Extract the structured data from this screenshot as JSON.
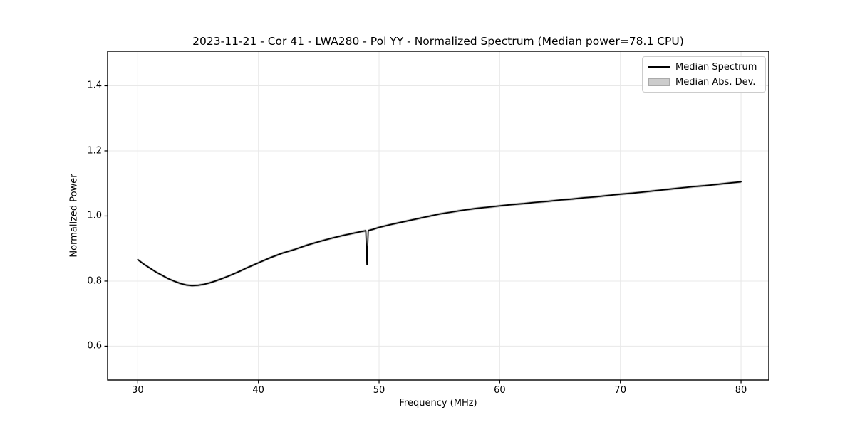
{
  "figure": {
    "background": "#ffffff"
  },
  "chart_data": {
    "type": "line",
    "title": "2023-11-21 - Cor 41 - LWA280 - Pol YY - Normalized Spectrum (Median power=78.1 CPU)",
    "xlabel": "Frequency (MHz)",
    "ylabel": "Normalized Power",
    "xlim": [
      27.5,
      82.3
    ],
    "ylim": [
      0.496,
      1.506
    ],
    "xticks": [
      30,
      40,
      50,
      60,
      70,
      80
    ],
    "yticks": [
      0.6,
      0.8,
      1.0,
      1.2,
      1.4
    ],
    "grid": true,
    "grid_color": "#e8e8e8",
    "frame_color": "#000000",
    "legend": {
      "position": "upper right",
      "entries": [
        {
          "label": "Median Spectrum",
          "type": "line",
          "color": "#000000"
        },
        {
          "label": "Median Abs. Dev.",
          "type": "patch",
          "color": "#cccccc"
        }
      ]
    },
    "series": [
      {
        "name": "Median Spectrum",
        "color": "#000000",
        "line_width": 1.8,
        "x": [
          30,
          30.5,
          31,
          31.5,
          32,
          32.5,
          33,
          33.5,
          34,
          34.5,
          35,
          35.5,
          36,
          36.5,
          37,
          37.5,
          38,
          38.5,
          39,
          39.5,
          40,
          41,
          42,
          43,
          44,
          45,
          46,
          47,
          48,
          48.5,
          48.8,
          48.9,
          49.0,
          49.1,
          49.2,
          49.5,
          50,
          51,
          52,
          53,
          54,
          55,
          56,
          57,
          58,
          59,
          60,
          61,
          62,
          63,
          64,
          65,
          66,
          67,
          68,
          69,
          70,
          71,
          72,
          73,
          74,
          75,
          76,
          77,
          78,
          79,
          80
        ],
        "y": [
          0.866,
          0.852,
          0.84,
          0.828,
          0.818,
          0.808,
          0.8,
          0.793,
          0.788,
          0.786,
          0.787,
          0.79,
          0.795,
          0.801,
          0.808,
          0.815,
          0.823,
          0.831,
          0.84,
          0.848,
          0.856,
          0.872,
          0.886,
          0.897,
          0.91,
          0.921,
          0.931,
          0.94,
          0.948,
          0.952,
          0.954,
          0.955,
          0.85,
          0.955,
          0.956,
          0.959,
          0.965,
          0.974,
          0.982,
          0.99,
          0.998,
          1.006,
          1.012,
          1.018,
          1.023,
          1.027,
          1.031,
          1.035,
          1.038,
          1.042,
          1.045,
          1.049,
          1.052,
          1.056,
          1.059,
          1.063,
          1.067,
          1.07,
          1.074,
          1.078,
          1.082,
          1.086,
          1.09,
          1.093,
          1.097,
          1.101,
          1.105
        ]
      }
    ],
    "mad_band": {
      "name": "Median Abs. Dev.",
      "color": "#c0c0c0",
      "half_width": 0.004
    },
    "annotations": {
      "rfi_dip_freq_mhz": 49.0,
      "rfi_dip_min_power": 0.85
    }
  }
}
